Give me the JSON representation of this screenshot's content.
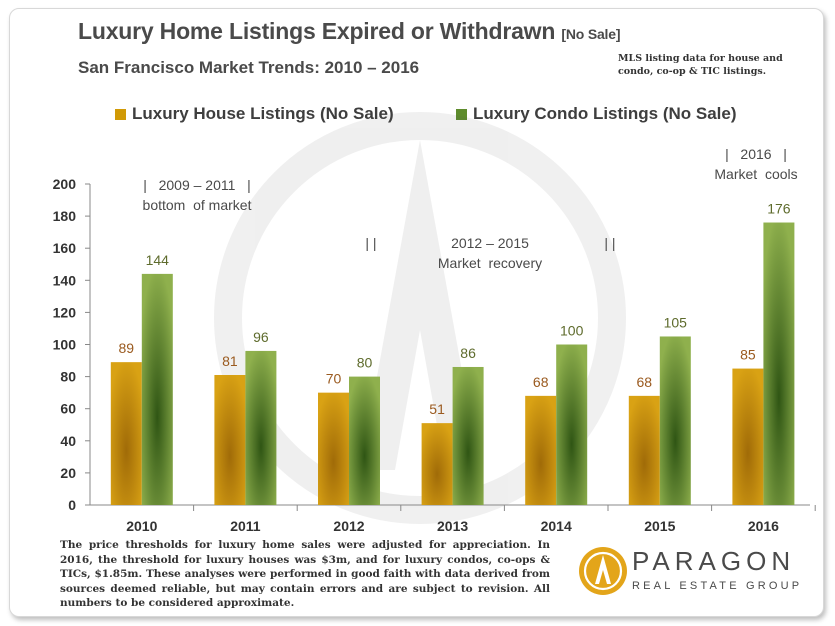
{
  "title": "Luxury Home Listings Expired or Withdrawn",
  "title_suffix": "[No Sale]",
  "subtitle": "San Francisco Market Trends: 2010 – 2016",
  "source_note": "MLS listing data for house and condo, co-op & TIC listings.",
  "footer_note": "The price thresholds for luxury home sales were adjusted for appreciation. In 2016, the threshold for luxury houses was $3m, and for luxury condos, co-ops & TICs, $1.85m. These analyses were performed in good faith with data derived from sources deemed reliable, but may contain errors and are subject to revision. All numbers to be considered approximate.",
  "logo": {
    "name": "PARAGON",
    "tagline": "REAL ESTATE GROUP",
    "icon": "paragon-logo-icon"
  },
  "colors": {
    "house": "#d19a06",
    "condo": "#5e8c2c",
    "axis": "#888888"
  },
  "chart_data": {
    "type": "bar",
    "categories": [
      "2010",
      "2011",
      "2012",
      "2013",
      "2014",
      "2015",
      "2016"
    ],
    "series": [
      {
        "name": "Luxury House Listings (No Sale)",
        "values": [
          89,
          81,
          70,
          51,
          68,
          68,
          85
        ]
      },
      {
        "name": "Luxury Condo Listings (No Sale)",
        "values": [
          144,
          96,
          80,
          86,
          100,
          105,
          176
        ]
      }
    ],
    "ylim": [
      0,
      200
    ],
    "yticks": [
      "0",
      "20",
      "40",
      "60",
      "80",
      "100",
      "120",
      "140",
      "160",
      "180",
      "200"
    ],
    "grid": false,
    "legend": "top",
    "annotations": [
      {
        "line1": "|   2009 – 2011   |",
        "line2": "bottom  of market"
      },
      {
        "line1": "| |",
        "line2": ""
      },
      {
        "line1": "2012 – 2015",
        "line2": "Market  recovery"
      },
      {
        "line1": "| |",
        "line2": ""
      },
      {
        "line1": "|   2016   |",
        "line2": "Market  cools"
      }
    ]
  }
}
